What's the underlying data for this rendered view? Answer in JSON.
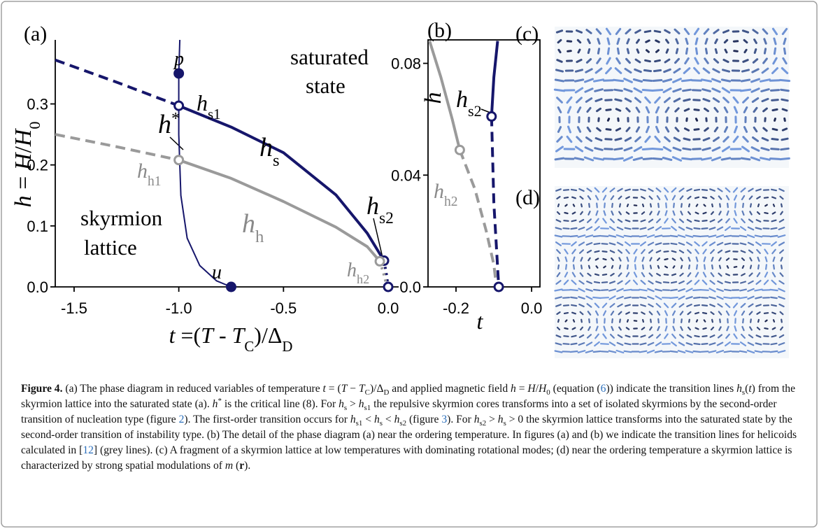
{
  "chart_data": [
    {
      "type": "line",
      "panel": "(a)",
      "xlabel": [
        [
          "t",
          "i"
        ],
        [
          " =(",
          "n"
        ],
        [
          "T",
          "i"
        ],
        [
          " - ",
          "n"
        ],
        [
          "T",
          "i"
        ],
        [
          "C",
          "sub"
        ],
        [
          ")/Δ",
          "n"
        ],
        [
          "D",
          "sub"
        ]
      ],
      "ylabel": [
        [
          "h",
          "i"
        ],
        [
          " = ",
          "n"
        ],
        [
          "H",
          "i"
        ],
        [
          "/",
          "n"
        ],
        [
          "H",
          "i"
        ],
        [
          "0",
          "sub"
        ]
      ],
      "xlim": [
        -1.59,
        0.05
      ],
      "ylim": [
        0,
        0.405
      ],
      "xticks": [
        -1.5,
        {
          "value": -1,
          "label": "-1.0"
        },
        -0.5,
        {
          "value": 0,
          "label": "0.0"
        }
      ],
      "yticks": [
        {
          "value": 0,
          "label": "0.0"
        },
        0.1,
        0.2,
        0.3
      ],
      "series": [
        {
          "color": "#16166b",
          "width": 4,
          "dash": "solid",
          "x": [
            -1,
            -0.75,
            -0.5,
            -0.25,
            -0.1,
            -0.02
          ],
          "y": [
            0.297,
            0.262,
            0.22,
            0.151,
            0.088,
            0.043
          ]
        },
        {
          "color": "#16166b",
          "width": 4,
          "dash": "dashed",
          "x": [
            -1.59,
            -1.3,
            -1
          ],
          "y": [
            0.372,
            0.336,
            0.297
          ]
        },
        {
          "color": "#16166b",
          "width": 4,
          "dash": "dotted",
          "x": [
            -0.02,
            -0.008,
            0
          ],
          "y": [
            0.043,
            0.02,
            0
          ]
        },
        {
          "color": "#9a9a9a",
          "width": 4,
          "dash": "solid",
          "x": [
            -1,
            -0.75,
            -0.5,
            -0.25,
            -0.1,
            -0.04
          ],
          "y": [
            0.208,
            0.178,
            0.14,
            0.098,
            0.066,
            0.042
          ]
        },
        {
          "color": "#9a9a9a",
          "width": 4,
          "dash": "dashed",
          "x": [
            -1.59,
            -1.3,
            -1
          ],
          "y": [
            0.25,
            0.23,
            0.208
          ]
        },
        {
          "color": "#9a9a9a",
          "width": 4,
          "dash": "dotted",
          "x": [
            -0.04,
            -0.02,
            -0.005
          ],
          "y": [
            0.042,
            0.02,
            0
          ]
        },
        {
          "color": "#16166b",
          "width": 2,
          "dash": "solid",
          "x": [
            -0.995,
            -1,
            -1,
            -0.99,
            -0.96,
            -0.9,
            -0.82,
            -0.75
          ],
          "y": [
            0.405,
            0.35,
            0.25,
            0.15,
            0.08,
            0.035,
            0.01,
            0
          ]
        }
      ],
      "points": {
        "x": [
          -1,
          -0.75,
          -1,
          -1,
          -0.02,
          0,
          -0.04
        ],
        "y": [
          0.35,
          0,
          0.297,
          0.208,
          0.043,
          0,
          0.042
        ],
        "colors": [
          "#16166b",
          "#16166b",
          "#16166b",
          "#9a9a9a",
          "#16166b",
          "#16166b",
          "#9a9a9a"
        ],
        "filled": [
          true,
          true,
          false,
          false,
          false,
          false,
          false
        ]
      },
      "annotations": [
        {
          "text": [
            [
              "saturated",
              "n"
            ]
          ],
          "color": "#000000"
        },
        {
          "text": [
            [
              "state",
              "n"
            ]
          ],
          "color": "#000000"
        },
        {
          "text": [
            [
              "skyrmion",
              "n"
            ]
          ],
          "color": "#000000"
        },
        {
          "text": [
            [
              "lattice",
              "n"
            ]
          ],
          "color": "#000000"
        },
        {
          "text": [
            [
              "p",
              "i"
            ]
          ],
          "color": "#000000"
        },
        {
          "text": [
            [
              "h",
              "i"
            ],
            [
              "*",
              "sup"
            ]
          ],
          "color": "#000000"
        },
        {
          "text": [
            [
              "h",
              "i"
            ],
            [
              "s1",
              "sub"
            ]
          ],
          "color": "#000000"
        },
        {
          "text": [
            [
              "h",
              "i"
            ],
            [
              "s",
              "sub"
            ]
          ],
          "color": "#000000"
        },
        {
          "text": [
            [
              "h",
              "i"
            ],
            [
              "h",
              "sub"
            ]
          ],
          "color": "#8a8a8a"
        },
        {
          "text": [
            [
              "h",
              "i"
            ],
            [
              "h1",
              "sub"
            ]
          ],
          "color": "#8a8a8a"
        },
        {
          "text": [
            [
              "h",
              "i"
            ],
            [
              "s2",
              "sub"
            ]
          ],
          "color": "#000000"
        },
        {
          "text": [
            [
              "h",
              "i"
            ],
            [
              "h2",
              "sub"
            ]
          ],
          "color": "#8a8a8a"
        },
        {
          "text": [
            [
              "u",
              "i"
            ]
          ],
          "color": "#000000"
        }
      ]
    },
    {
      "type": "line",
      "panel": "(b)",
      "xlabel": [
        [
          "t",
          "i"
        ]
      ],
      "ylabel": [
        [
          "h",
          "i"
        ]
      ],
      "xlim": [
        -0.274,
        0.022
      ],
      "ylim": [
        0,
        0.0884
      ],
      "xticks": [
        -0.2,
        {
          "value": 0,
          "label": "0.0"
        }
      ],
      "yticks": [
        {
          "value": 0,
          "label": "0.0"
        },
        0.04,
        0.08
      ],
      "series": [
        {
          "color": "#16166b",
          "width": 4,
          "dash": "solid",
          "x": [
            -0.09,
            -0.1,
            -0.106
          ],
          "y": [
            0.088,
            0.075,
            0.061
          ]
        },
        {
          "color": "#16166b",
          "width": 4,
          "dash": "dashed",
          "x": [
            -0.106,
            -0.1,
            -0.087
          ],
          "y": [
            0.061,
            0.03,
            0
          ]
        },
        {
          "color": "#9a9a9a",
          "width": 4,
          "dash": "solid",
          "x": [
            -0.27,
            -0.24,
            -0.21,
            -0.19
          ],
          "y": [
            0.088,
            0.075,
            0.06,
            0.049
          ]
        },
        {
          "color": "#9a9a9a",
          "width": 4,
          "dash": "dashed",
          "x": [
            -0.19,
            -0.15,
            -0.12,
            -0.1,
            -0.093
          ],
          "y": [
            0.049,
            0.035,
            0.02,
            0.008,
            0
          ]
        }
      ],
      "points": {
        "x": [
          -0.106,
          -0.087,
          -0.19
        ],
        "y": [
          0.061,
          0,
          0.049
        ],
        "colors": [
          "#16166b",
          "#16166b",
          "#9a9a9a"
        ],
        "filled": [
          false,
          false,
          false
        ]
      },
      "annotations": [
        {
          "text": [
            [
              "h",
              "i"
            ],
            [
              "s2",
              "sub"
            ]
          ],
          "color": "#000000"
        },
        {
          "text": [
            [
              "h",
              "i"
            ],
            [
              "h2",
              "sub"
            ]
          ],
          "color": "#8a8a8a"
        }
      ]
    }
  ],
  "images": [
    {
      "panel": "(c)"
    },
    {
      "panel": "(d)"
    }
  ],
  "caption": [
    [
      "Figure 4.",
      "b"
    ],
    [
      " (a) The phase diagram in reduced variables of temperature ",
      "n"
    ],
    [
      "t",
      "i"
    ],
    [
      " = (",
      "n"
    ],
    [
      "T",
      "i"
    ],
    [
      " − ",
      "n"
    ],
    [
      "T",
      "i"
    ],
    [
      "C",
      "sub"
    ],
    [
      ")/Δ",
      "n"
    ],
    [
      "D",
      "sub"
    ],
    [
      " and applied magnetic field ",
      "n"
    ],
    [
      "h",
      "i"
    ],
    [
      " = ",
      "n"
    ],
    [
      "H",
      "i"
    ],
    [
      "/",
      "n"
    ],
    [
      "H",
      "i"
    ],
    [
      "0",
      "sub"
    ],
    [
      " (equation (",
      "n"
    ],
    [
      "6",
      "link"
    ],
    [
      ")) indicate the transition lines ",
      "n"
    ],
    [
      "h",
      "i"
    ],
    [
      "s",
      "sub"
    ],
    [
      "(",
      "n"
    ],
    [
      "t",
      "i"
    ],
    [
      ") from the skyrmion lattice into the saturated state (a). ",
      "n"
    ],
    [
      "h",
      "i"
    ],
    [
      "*",
      "sup"
    ],
    [
      " is the critical line (8). For ",
      "n"
    ],
    [
      "h",
      "i"
    ],
    [
      "s",
      "sub"
    ],
    [
      " > ",
      "n"
    ],
    [
      "h",
      "i"
    ],
    [
      "s1",
      "sub"
    ],
    [
      " the repulsive skyrmion cores transforms into a set of isolated skyrmions by the second-order transition of nucleation type (figure ",
      "n"
    ],
    [
      "2",
      "link"
    ],
    [
      "). The first-order transition occurs for ",
      "n"
    ],
    [
      "h",
      "i"
    ],
    [
      "s1",
      "sub"
    ],
    [
      " < ",
      "n"
    ],
    [
      "h",
      "i"
    ],
    [
      "s",
      "sub"
    ],
    [
      " < ",
      "n"
    ],
    [
      "h",
      "i"
    ],
    [
      "s2",
      "sub"
    ],
    [
      " (figure ",
      "n"
    ],
    [
      "3",
      "link"
    ],
    [
      "). For ",
      "n"
    ],
    [
      "h",
      "i"
    ],
    [
      "s2",
      "sub"
    ],
    [
      " > ",
      "n"
    ],
    [
      "h",
      "i"
    ],
    [
      "s",
      "sub"
    ],
    [
      " > 0 the skyrmion lattice transforms into the saturated state by the second-order transition of instability type. (b) The detail of the phase diagram (a) near the ordering temperature. In figures (a) and (b) we indicate the transition lines for helicoids calculated in [",
      "n"
    ],
    [
      "12",
      "link"
    ],
    [
      "] (grey lines). (c) A fragment of a skyrmion lattice at low temperatures with dominating rotational modes; (d) near the ordering temperature a skyrmion lattice is characterized by strong spatial modulations of ",
      "n"
    ],
    [
      "m",
      "i"
    ],
    [
      " (",
      "n"
    ],
    [
      "r",
      "b"
    ],
    [
      ").",
      "n"
    ]
  ]
}
